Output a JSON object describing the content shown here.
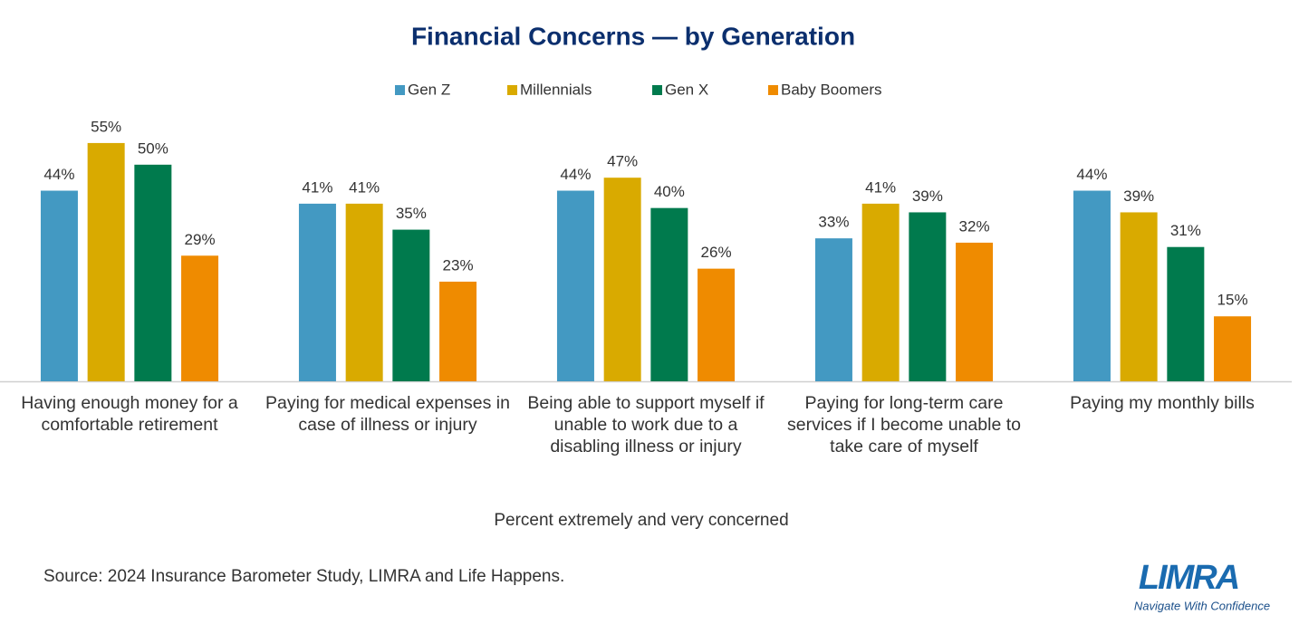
{
  "chart_data": {
    "type": "bar",
    "title": "Financial Concerns — by Generation",
    "xlabel": "Percent extremely and very concerned",
    "source": "Source: 2024 Insurance Barometer Study, LIMRA and Life Happens.",
    "logo": {
      "name": "LIMRA",
      "tagline": "Navigate With Confidence"
    },
    "categories": [
      "Having enough money for a comfortable retirement",
      "Paying for medical expenses in case of illness or injury",
      "Being able to support myself if unable to work due to a disabling illness or injury",
      "Paying for long-term care services if I become unable to take care of myself",
      "Paying my monthly bills"
    ],
    "ylim": [
      0,
      60
    ],
    "legend": "top",
    "series": [
      {
        "name": "Gen Z",
        "color": "#4399c2",
        "values": [
          44,
          41,
          44,
          33,
          44
        ],
        "value_labels": [
          "44%",
          "41%",
          "44%",
          "33%",
          "44%"
        ]
      },
      {
        "name": "Millennials",
        "color": "#d9aa00",
        "values": [
          55,
          41,
          47,
          41,
          39
        ],
        "value_labels": [
          "55%",
          "41%",
          "47%",
          "41%",
          "39%"
        ]
      },
      {
        "name": "Gen X",
        "color": "#007a4d",
        "values": [
          50,
          35,
          40,
          39,
          31
        ],
        "value_labels": [
          "50%",
          "35%",
          "40%",
          "39%",
          "31%"
        ]
      },
      {
        "name": "Baby Boomers",
        "color": "#ef8b00",
        "values": [
          29,
          23,
          26,
          32,
          15
        ],
        "value_labels": [
          "29%",
          "23%",
          "26%",
          "32%",
          "15%"
        ]
      }
    ]
  }
}
